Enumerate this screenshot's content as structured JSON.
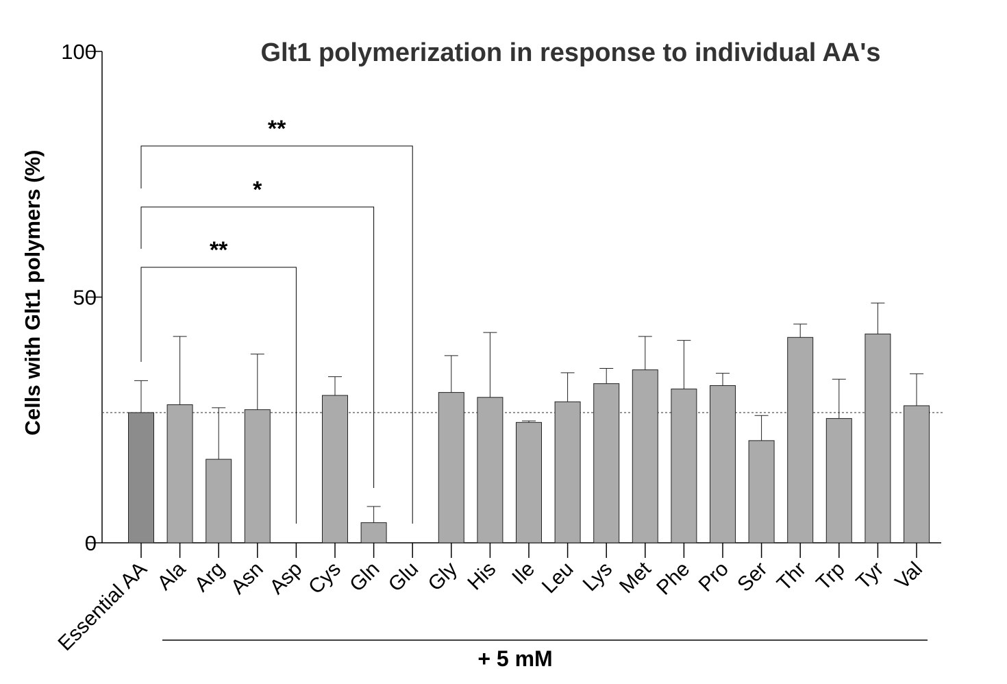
{
  "chart_data": {
    "type": "bar",
    "title": "Glt1 polymerization in response to individual AA's",
    "ylabel": "Cells with Glt1 polymers (%)",
    "group_label": "+ 5 mM",
    "ylim": [
      0,
      100
    ],
    "yticks": [
      "0",
      "50",
      "100"
    ],
    "categories": [
      "Essential AA",
      "Ala",
      "Arg",
      "Asn",
      "Asp",
      "Cys",
      "Gln",
      "Glu",
      "Gly",
      "His",
      "Ile",
      "Leu",
      "Lys",
      "Met",
      "Phe",
      "Pro",
      "Ser",
      "Thr",
      "Trp",
      "Tyr",
      "Val"
    ],
    "values": [
      26.5,
      28.1,
      17,
      27.1,
      0,
      30,
      4.1,
      0,
      30.6,
      29.6,
      24.5,
      28.7,
      32.4,
      35.2,
      31.3,
      32,
      20.8,
      41.8,
      25.3,
      42.5,
      27.9
    ],
    "error_upper": [
      33,
      42,
      27.5,
      38.4,
      0,
      33.8,
      7.4,
      0,
      38.1,
      42.8,
      24.8,
      34.6,
      35.5,
      42,
      41.2,
      34.5,
      25.9,
      44.5,
      33.3,
      48.8,
      34.4
    ],
    "reference_line": 26.5,
    "colors": {
      "control_bar": "#8c8c8c",
      "bar": "#ababab",
      "outline": "#222222"
    },
    "significance": [
      {
        "from": "Essential AA",
        "to": "Asp",
        "label": "**"
      },
      {
        "from": "Essential AA",
        "to": "Gln",
        "label": "*"
      },
      {
        "from": "Essential AA",
        "to": "Glu",
        "label": "**"
      }
    ]
  }
}
